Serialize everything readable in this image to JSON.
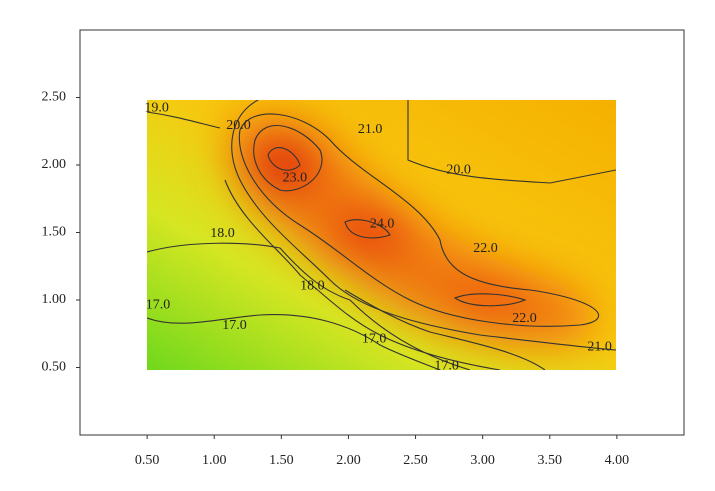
{
  "chart_data": {
    "type": "contour",
    "xlim": [
      0,
      4.5
    ],
    "ylim": [
      0,
      3
    ],
    "xticks": [
      {
        "value": 0.5,
        "label": "0.50"
      },
      {
        "value": 1,
        "label": "1.00"
      },
      {
        "value": 1.5,
        "label": "1.50"
      },
      {
        "value": 2,
        "label": "2.00"
      },
      {
        "value": 2.5,
        "label": "2.50"
      },
      {
        "value": 3,
        "label": "3.00"
      },
      {
        "value": 3.5,
        "label": "3.50"
      },
      {
        "value": 4,
        "label": "4.00"
      }
    ],
    "yticks": [
      {
        "value": 0.5,
        "label": "0.50"
      },
      {
        "value": 1,
        "label": "1.00"
      },
      {
        "value": 1.5,
        "label": "1.50"
      },
      {
        "value": 2,
        "label": "2.00"
      },
      {
        "value": 2.5,
        "label": "2.50"
      }
    ],
    "contour_labels": [
      {
        "value": 19,
        "label": "19.0",
        "x": 0.48,
        "y": 2.42
      },
      {
        "value": 20,
        "label": "20.0",
        "x": 1.09,
        "y": 2.29
      },
      {
        "value": 21,
        "label": "21.0",
        "x": 2.07,
        "y": 2.26
      },
      {
        "value": 20,
        "label": "20.0",
        "x": 2.73,
        "y": 1.96
      },
      {
        "value": 23,
        "label": "23.0",
        "x": 1.51,
        "y": 1.9
      },
      {
        "value": 24,
        "label": "24.0",
        "x": 2.16,
        "y": 1.56
      },
      {
        "value": 18,
        "label": "18.0",
        "x": 0.97,
        "y": 1.49
      },
      {
        "value": 22,
        "label": "22.0",
        "x": 2.93,
        "y": 1.38
      },
      {
        "value": 18,
        "label": "18.0",
        "x": 1.64,
        "y": 1.1
      },
      {
        "value": 17,
        "label": "17.0",
        "x": 0.49,
        "y": 0.96
      },
      {
        "value": 22,
        "label": "22.0",
        "x": 3.22,
        "y": 0.86
      },
      {
        "value": 17,
        "label": "17.0",
        "x": 1.06,
        "y": 0.81
      },
      {
        "value": 17,
        "label": "17.0",
        "x": 2.1,
        "y": 0.71
      },
      {
        "value": 21,
        "label": "21.0",
        "x": 3.78,
        "y": 0.65
      },
      {
        "value": 17,
        "label": "17.0",
        "x": 2.64,
        "y": 0.51
      }
    ]
  }
}
